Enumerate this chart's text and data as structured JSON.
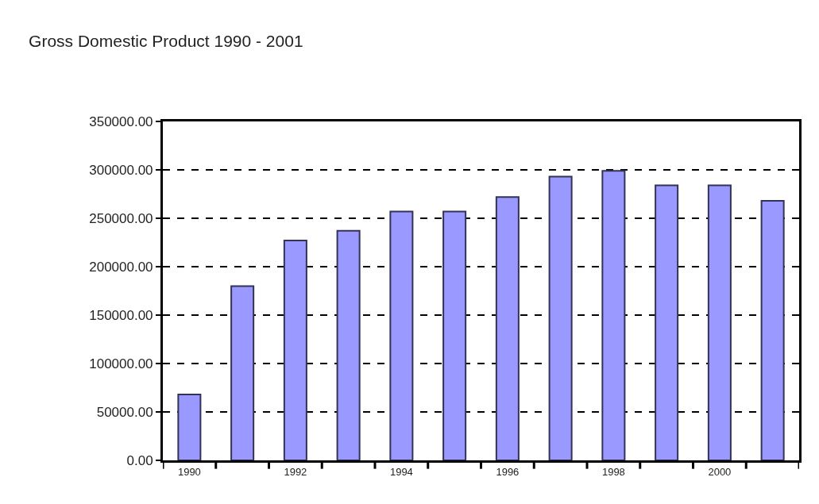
{
  "chart_data": {
    "type": "bar",
    "title": "Gross Domestic Product 1990 - 2001",
    "categories": [
      "1990",
      null,
      "1992",
      null,
      "1994",
      null,
      "1996",
      null,
      "1998",
      null,
      "2000",
      null
    ],
    "values": [
      68000,
      180000,
      227000,
      237000,
      257000,
      257000,
      272000,
      293000,
      299000,
      284000,
      284000,
      268000
    ],
    "color": "#9999ff",
    "ylim": [
      0,
      350000
    ],
    "yticks": [
      {
        "value": 0,
        "label": "0.00"
      },
      {
        "value": 50000,
        "label": "50000.00"
      },
      {
        "value": 100000,
        "label": "100000.00"
      },
      {
        "value": 150000,
        "label": "150000.00"
      },
      {
        "value": 200000,
        "label": "200000.00"
      },
      {
        "value": 250000,
        "label": "250000.00"
      },
      {
        "value": 300000,
        "label": "300000.00"
      },
      {
        "value": 350000,
        "label": "350000.00"
      }
    ],
    "grid": "y",
    "line_style": "dashed"
  }
}
